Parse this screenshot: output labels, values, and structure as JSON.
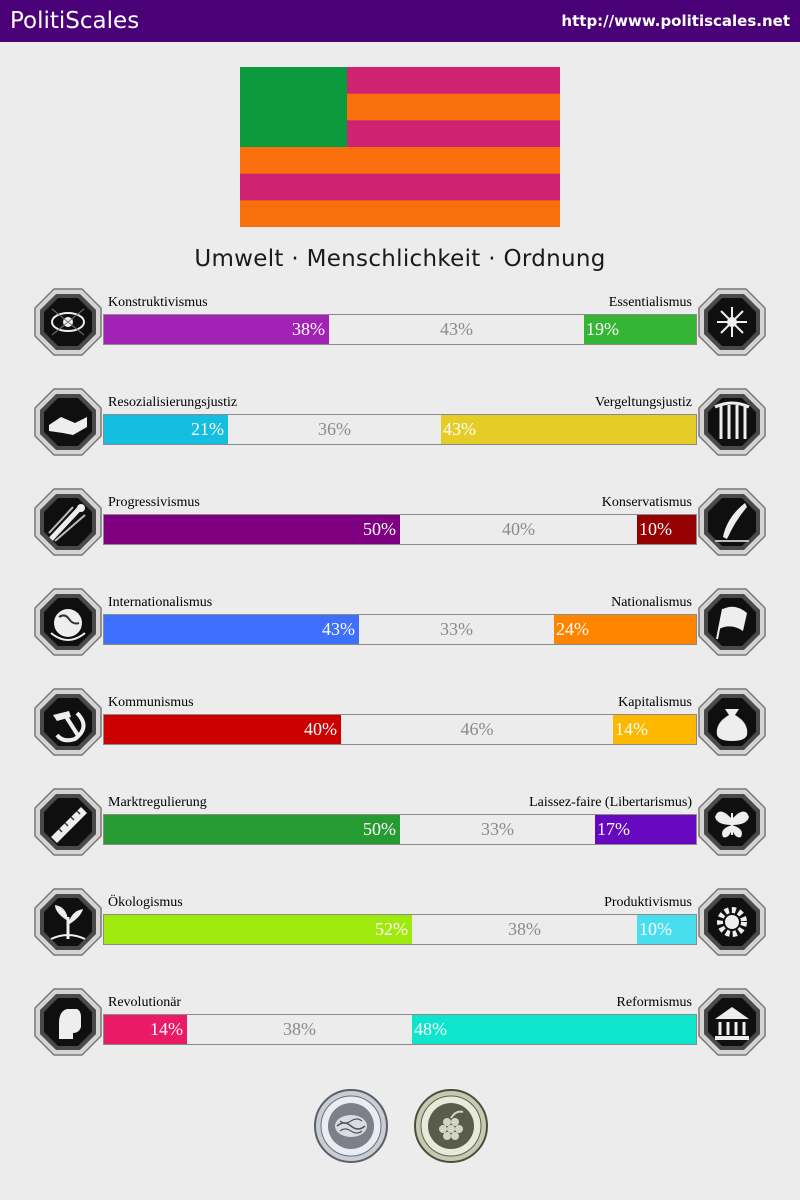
{
  "header": {
    "brand": "PolitiScales",
    "url": "http://www.politiscales.net"
  },
  "header_color": "#4a0076",
  "flag": {
    "canton_color": "#0b9a3e",
    "stripes": [
      "#cf2372",
      "#f96f0b",
      "#cf2372",
      "#f96f0b",
      "#cf2372",
      "#f96f0b"
    ]
  },
  "slogan": "Umwelt · Menschlichkeit · Ordnung",
  "axes": [
    {
      "left_label": "Konstruktivismus",
      "right_label": "Essentialismus",
      "left_value": 38,
      "mid_value": 43,
      "right_value": 19,
      "left_text": "38%",
      "mid_text": "43%",
      "right_text": "19%",
      "left_color": "#a322b6",
      "right_color": "#34b634",
      "left_icon": "eye-icon",
      "right_icon": "flower-icon"
    },
    {
      "left_label": "Resozialisierungsjustiz",
      "right_label": "Vergeltungsjustiz",
      "left_value": 21,
      "mid_value": 36,
      "right_value": 43,
      "left_text": "21%",
      "mid_text": "36%",
      "right_text": "43%",
      "left_color": "#14bee1",
      "right_color": "#e6cc27",
      "left_icon": "handshake-icon",
      "right_icon": "prison-bars-icon"
    },
    {
      "left_label": "Progressivismus",
      "right_label": "Konservatismus",
      "left_value": 50,
      "mid_value": 40,
      "right_value": 10,
      "left_text": "50%",
      "mid_text": "40%",
      "right_text": "10%",
      "left_color": "#7e0080",
      "right_color": "#950000",
      "left_icon": "comet-icon",
      "right_icon": "quill-icon"
    },
    {
      "left_label": "Internationalismus",
      "right_label": "Nationalismus",
      "left_value": 43,
      "mid_value": 33,
      "right_value": 24,
      "left_text": "43%",
      "mid_text": "33%",
      "right_text": "24%",
      "left_color": "#3e6ffd",
      "right_color": "#ff8500",
      "left_icon": "globe-icon",
      "right_icon": "flag-icon"
    },
    {
      "left_label": "Kommunismus",
      "right_label": "Kapitalismus",
      "left_value": 40,
      "mid_value": 46,
      "right_value": 14,
      "left_text": "40%",
      "mid_text": "46%",
      "right_text": "14%",
      "left_color": "#cc0000",
      "right_color": "#ffb800",
      "left_icon": "hammer-sickle-icon",
      "right_icon": "money-bag-icon"
    },
    {
      "left_label": "Marktregulierung",
      "right_label": "Laissez-faire (Libertarismus)",
      "left_value": 50,
      "mid_value": 33,
      "right_value": 17,
      "left_text": "50%",
      "mid_text": "33%",
      "right_text": "17%",
      "left_color": "#269b32",
      "right_color": "#6608c0",
      "left_icon": "ruler-icon",
      "right_icon": "butterfly-icon"
    },
    {
      "left_label": "Ökologismus",
      "right_label": "Produktivismus",
      "left_value": 52,
      "mid_value": 38,
      "right_value": 10,
      "left_text": "52%",
      "mid_text": "38%",
      "right_text": "10%",
      "left_color": "#a0e90d",
      "right_color": "#48deed",
      "left_icon": "sprout-icon",
      "right_icon": "gear-icon"
    },
    {
      "left_label": "Revolutionär",
      "right_label": "Reformismus",
      "left_value": 14,
      "mid_value": 38,
      "right_value": 48,
      "left_text": "14%",
      "mid_text": "38%",
      "right_text": "48%",
      "left_color": "#eb1a66",
      "right_color": "#0fe4cd",
      "left_icon": "raised-fist-icon",
      "right_icon": "parliament-icon"
    }
  ],
  "seals": [
    {
      "icon": "brain-seal-icon"
    },
    {
      "icon": "grapes-seal-icon"
    }
  ]
}
